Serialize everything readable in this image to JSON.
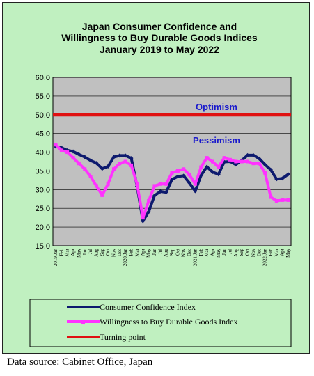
{
  "chart_data": {
    "type": "line",
    "title_lines": [
      "Japan Consumer Confidence and",
      "Willingness to Buy Durable Goods Indices",
      "January 2019 to May 2022"
    ],
    "ylim": [
      15,
      60
    ],
    "yticks": [
      "15.0",
      "20.0",
      "25.0",
      "30.0",
      "35.0",
      "40.0",
      "45.0",
      "50.0",
      "55.0",
      "60.0"
    ],
    "x_labels": [
      "2019 Jan",
      "Feb",
      "Mar",
      "Apr",
      "May",
      "Jun",
      "Jul",
      "Aug",
      "Sep",
      "Oct",
      "Nov",
      "Dec",
      "2020 Jan",
      "Feb",
      "Mar",
      "Apr",
      "May",
      "Jun",
      "Jul",
      "Aug",
      "Sep",
      "Oct",
      "Nov",
      "Dec",
      "2021 Jan",
      "Feb",
      "Mar",
      "Apr",
      "May",
      "Jun",
      "Jul",
      "Aug",
      "Sep",
      "Oct",
      "Nov",
      "Dec",
      "2022 Jan",
      "Feb",
      "Mar",
      "Apr",
      "May"
    ],
    "series": [
      {
        "name": "Consumer Confidence Index",
        "color": "#0d1a6e",
        "marker": "diamond",
        "values": [
          41.5,
          41.2,
          40.5,
          40.2,
          39.4,
          38.7,
          37.8,
          37.1,
          35.6,
          36.2,
          38.7,
          39.1,
          39.1,
          38.4,
          30.9,
          21.6,
          24.1,
          28.4,
          29.5,
          29.3,
          32.7,
          33.5,
          33.7,
          31.8,
          29.6,
          33.8,
          36.1,
          34.7,
          34.1,
          37.4,
          37.5,
          36.7,
          37.8,
          39.2,
          39.2,
          38.3,
          36.7,
          35.3,
          32.8,
          33.0,
          34.1
        ]
      },
      {
        "name": "Willingness to Buy Durable Goods Index",
        "color": "#ff33ff",
        "marker": "square",
        "values": [
          42.0,
          40.5,
          40.0,
          38.5,
          37.0,
          35.5,
          33.5,
          31.0,
          28.5,
          31.5,
          35.5,
          37.0,
          37.5,
          36.5,
          31.5,
          22.5,
          27.0,
          31.0,
          31.5,
          31.5,
          34.5,
          35.0,
          35.5,
          34.0,
          31.5,
          36.0,
          38.5,
          37.5,
          36.0,
          38.5,
          38.0,
          37.5,
          37.5,
          37.5,
          37.0,
          37.0,
          34.5,
          28.0,
          27.0,
          27.2,
          27.2
        ]
      },
      {
        "name": "Turning point",
        "color": "#e01010",
        "values": 50
      }
    ],
    "annotations": [
      "Optimism",
      "Pessimism"
    ],
    "grid": true,
    "legend": "bottom"
  },
  "source_note": "Data source: Cabinet Office, Japan"
}
